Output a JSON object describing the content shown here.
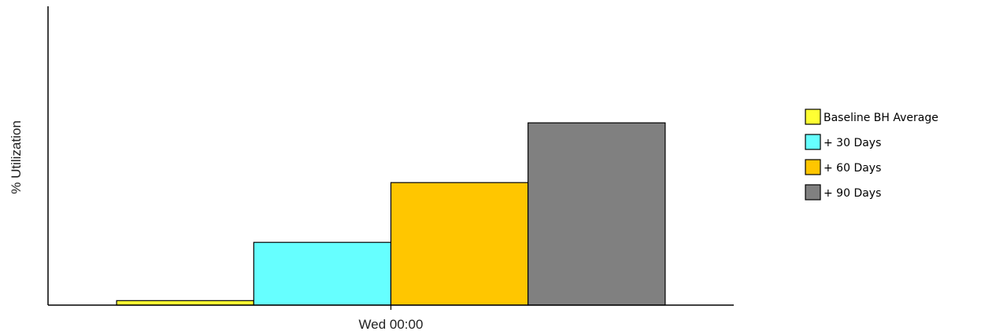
{
  "chart_data": {
    "type": "bar",
    "categories": [
      "Wed 00:00"
    ],
    "series": [
      {
        "name": "Baseline BH Average",
        "values": [
          1.5
        ],
        "color": "#ffff33"
      },
      {
        "name": "+ 30 Days",
        "values": [
          21
        ],
        "color": "#66ffff"
      },
      {
        "name": "+ 60 Days",
        "values": [
          41
        ],
        "color": "#ffc600"
      },
      {
        "name": "+ 90 Days",
        "values": [
          61
        ],
        "color": "#808080"
      }
    ],
    "ylabel": "% Utilization",
    "xlabel": "",
    "ylim": [
      0,
      100
    ],
    "grid": false,
    "legend": "right"
  }
}
